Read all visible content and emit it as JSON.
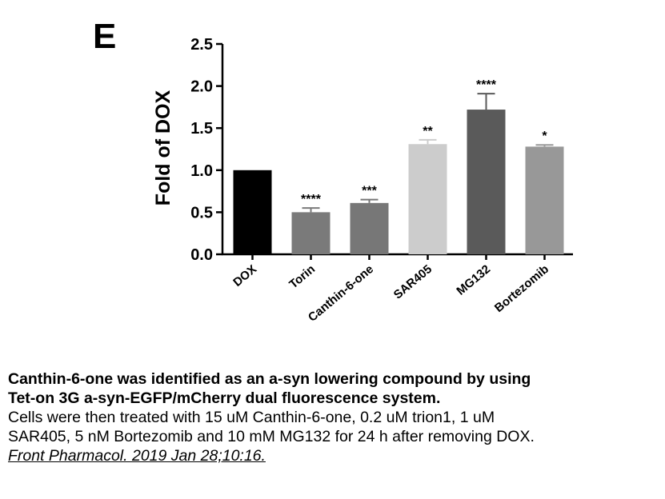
{
  "panel_letter": "E",
  "chart_data": {
    "type": "bar",
    "title": "",
    "xlabel": "",
    "ylabel": "Fold of DOX",
    "ylim": [
      0,
      2.5
    ],
    "yticks": [
      "0.0",
      "0.5",
      "1.0",
      "1.5",
      "2.0",
      "2.5"
    ],
    "grid": false,
    "categories": [
      "DOX",
      "Torin",
      "Canthin-6-one",
      "SAR405",
      "MG132",
      "Bortezomib"
    ],
    "values": [
      1.0,
      0.5,
      0.61,
      1.31,
      1.72,
      1.28
    ],
    "errors": [
      0,
      0.05,
      0.04,
      0.05,
      0.19,
      0.02
    ],
    "significance": [
      "",
      "****",
      "***",
      "**",
      "****",
      "*"
    ],
    "colors": [
      "#000000",
      "#7a7a7a",
      "#777777",
      "#cccccc",
      "#5a5a5a",
      "#989898"
    ]
  },
  "caption": {
    "title_line1": "Canthin-6-one was identified as an a-syn lowering compound by using",
    "title_line2": "Tet-on 3G a-syn-EGFP/mCherry dual fluorescence system.",
    "body_line1": "Cells were then treated with 15 uM Canthin-6-one, 0.2 uM trion1, 1 uM",
    "body_line2": "SAR405, 5 nM Bortezomib and 10 mM MG132 for 24 h after removing DOX.",
    "source": "Front Pharmacol. 2019 Jan 28;10:16."
  }
}
